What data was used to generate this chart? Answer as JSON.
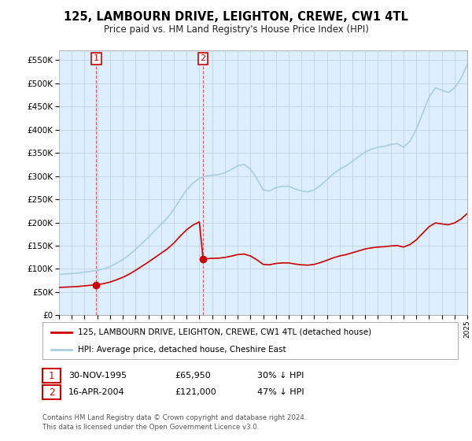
{
  "title": "125, LAMBOURN DRIVE, LEIGHTON, CREWE, CW1 4TL",
  "subtitle": "Price paid vs. HM Land Registry's House Price Index (HPI)",
  "ylim": [
    0,
    570000
  ],
  "yticks": [
    0,
    50000,
    100000,
    150000,
    200000,
    250000,
    300000,
    350000,
    400000,
    450000,
    500000,
    550000
  ],
  "hpi_color": "#a8cfe0",
  "price_color": "#cc0000",
  "background_color": "#ffffff",
  "plot_bg_color": "#ddeeff",
  "grid_color": "#bbccdd",
  "legend_label_price": "125, LAMBOURN DRIVE, LEIGHTON, CREWE, CW1 4TL (detached house)",
  "legend_label_hpi": "HPI: Average price, detached house, Cheshire East",
  "sale1_date": "30-NOV-1995",
  "sale1_price": 65950,
  "sale1_pct": "30% ↓ HPI",
  "sale2_date": "16-APR-2004",
  "sale2_price": 121000,
  "sale2_pct": "47% ↓ HPI",
  "footnote1": "Contains HM Land Registry data © Crown copyright and database right 2024.",
  "footnote2": "This data is licensed under the Open Government Licence v3.0.",
  "xstart": 1993,
  "xend": 2025,
  "sale1_year_f": 1995.917,
  "sale2_year_f": 2004.292
}
